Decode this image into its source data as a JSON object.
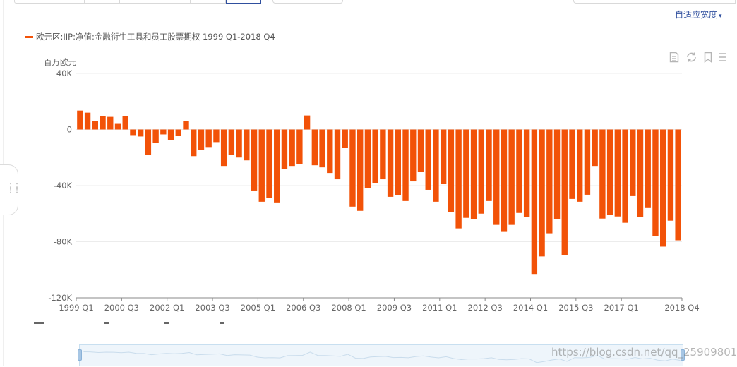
{
  "toolbar": {
    "adaptive_width_label": "自适应宽度",
    "caret": "▾"
  },
  "legend": {
    "label": "欧元区:IIP:净值:金融衍生工具和员工股票期权 1999 Q1-2018 Q4",
    "color": "#f25208"
  },
  "toolbox_icons": [
    "data-view-icon",
    "refresh-icon",
    "bookmark-icon",
    "menu-icon"
  ],
  "watermark": "https://blog.csdn.net/qq_25909801",
  "chart_data": {
    "type": "bar",
    "unit_label": "百万欧元",
    "color": "#f25208",
    "ylim": [
      -120000,
      40000
    ],
    "y_ticks": [
      {
        "value": 40000,
        "label": "40K"
      },
      {
        "value": 0,
        "label": "0"
      },
      {
        "value": -40000,
        "label": "-40K"
      },
      {
        "value": -80000,
        "label": "-80K"
      },
      {
        "value": -120000,
        "label": "-120K"
      }
    ],
    "x_tick_labels": [
      {
        "index": 0,
        "label": "1999 Q1"
      },
      {
        "index": 6,
        "label": "2000 Q3"
      },
      {
        "index": 12,
        "label": "2002 Q1"
      },
      {
        "index": 18,
        "label": "2003 Q3"
      },
      {
        "index": 24,
        "label": "2005 Q1"
      },
      {
        "index": 30,
        "label": "2006 Q3"
      },
      {
        "index": 36,
        "label": "2008 Q1"
      },
      {
        "index": 42,
        "label": "2009 Q3"
      },
      {
        "index": 48,
        "label": "2011 Q1"
      },
      {
        "index": 54,
        "label": "2012 Q3"
      },
      {
        "index": 60,
        "label": "2014 Q1"
      },
      {
        "index": 66,
        "label": "2015 Q3"
      },
      {
        "index": 72,
        "label": "2017 Q1"
      },
      {
        "index": 79,
        "label": "2018 Q4"
      }
    ],
    "categories": [
      "1999 Q1",
      "1999 Q2",
      "1999 Q3",
      "1999 Q4",
      "2000 Q1",
      "2000 Q2",
      "2000 Q3",
      "2000 Q4",
      "2001 Q1",
      "2001 Q2",
      "2001 Q3",
      "2001 Q4",
      "2002 Q1",
      "2002 Q2",
      "2002 Q3",
      "2002 Q4",
      "2003 Q1",
      "2003 Q2",
      "2003 Q3",
      "2003 Q4",
      "2004 Q1",
      "2004 Q2",
      "2004 Q3",
      "2004 Q4",
      "2005 Q1",
      "2005 Q2",
      "2005 Q3",
      "2005 Q4",
      "2006 Q1",
      "2006 Q2",
      "2006 Q3",
      "2006 Q4",
      "2007 Q1",
      "2007 Q2",
      "2007 Q3",
      "2007 Q4",
      "2008 Q1",
      "2008 Q2",
      "2008 Q3",
      "2008 Q4",
      "2009 Q1",
      "2009 Q2",
      "2009 Q3",
      "2009 Q4",
      "2010 Q1",
      "2010 Q2",
      "2010 Q3",
      "2010 Q4",
      "2011 Q1",
      "2011 Q2",
      "2011 Q3",
      "2011 Q4",
      "2012 Q1",
      "2012 Q2",
      "2012 Q3",
      "2012 Q4",
      "2013 Q1",
      "2013 Q2",
      "2013 Q3",
      "2013 Q4",
      "2014 Q1",
      "2014 Q2",
      "2014 Q3",
      "2014 Q4",
      "2015 Q1",
      "2015 Q2",
      "2015 Q3",
      "2015 Q4",
      "2016 Q1",
      "2016 Q2",
      "2016 Q3",
      "2016 Q4",
      "2017 Q1",
      "2017 Q2",
      "2017 Q3",
      "2017 Q4",
      "2018 Q1",
      "2018 Q2",
      "2018 Q3",
      "2018 Q4"
    ],
    "values": [
      13500,
      12000,
      6000,
      9500,
      9000,
      4500,
      9800,
      -4000,
      -5000,
      -18000,
      -9500,
      -3500,
      -7500,
      -4500,
      6000,
      -19000,
      -14500,
      -12500,
      -9000,
      -26000,
      -18000,
      -20000,
      -22000,
      -43500,
      -51500,
      -49000,
      -52000,
      -28000,
      -26000,
      -24500,
      10000,
      -25500,
      -27000,
      -31000,
      -35500,
      -13000,
      -55000,
      -58000,
      -42000,
      -38000,
      -35500,
      -48000,
      -47000,
      -51000,
      -37000,
      -30000,
      -43000,
      -51500,
      -39000,
      -59000,
      -70500,
      -63000,
      -64000,
      -60000,
      -51000,
      -68000,
      -73000,
      -68000,
      -59500,
      -62500,
      -103000,
      -90500,
      -74000,
      -64000,
      -89500,
      -49500,
      -51500,
      -46500,
      -26000,
      -63500,
      -61000,
      -62000,
      -66500,
      -47500,
      -62500,
      -56000,
      -76000,
      -83500,
      -65000,
      -79000
    ]
  }
}
